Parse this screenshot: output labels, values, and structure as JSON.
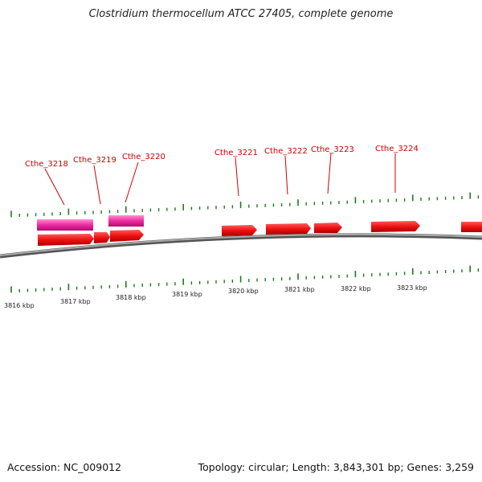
{
  "title": "Clostridium thermocellum ATCC 27405, complete genome",
  "footer": {
    "accession": "Accession: NC_009012",
    "summary": "Topology: circular; Length: 3,843,301 bp; Genes: 3,259"
  },
  "colors": {
    "cds": "#ee1111",
    "gene": "#ee2aa0",
    "backbone": "#888888",
    "tick": "#1d7a1d",
    "label": "#cc0000"
  },
  "scale_labels": [
    "3816 kbp",
    "3817 kbp",
    "3818 kbp",
    "3819 kbp",
    "3820 kbp",
    "3821 kbp",
    "3822 kbp",
    "3823 kbp"
  ],
  "gene_labels": [
    "Cthe_3218",
    "Cthe_3219",
    "Cthe_3220",
    "Cthe_3221",
    "Cthe_3222",
    "Cthe_3223",
    "Cthe_3224"
  ]
}
